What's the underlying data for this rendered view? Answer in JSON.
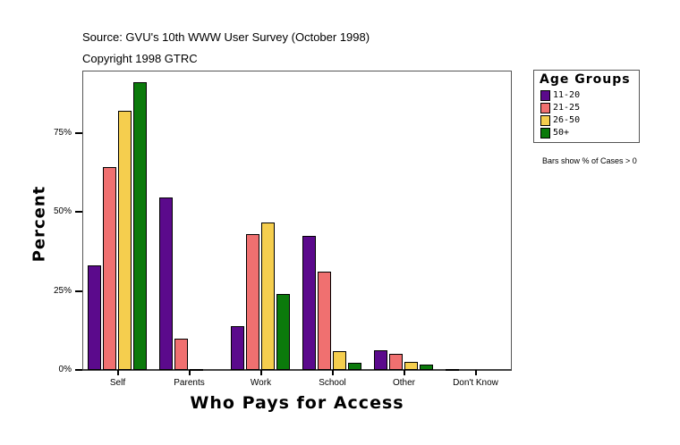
{
  "header": {
    "source": "Source: GVU's 10th WWW User Survey (October 1998)",
    "copyright": "Copyright 1998 GTRC"
  },
  "legend": {
    "title": "Age Groups",
    "items": [
      {
        "label": "11-20",
        "color": "#5B0A8C"
      },
      {
        "label": "21-25",
        "color": "#F07070"
      },
      {
        "label": "26-50",
        "color": "#F5CE4E"
      },
      {
        "label": "50+",
        "color": "#0B7A0B"
      }
    ],
    "note": "Bars show % of Cases > 0"
  },
  "axes": {
    "y_title": "Percent",
    "x_title": "Who Pays for Access",
    "y_ticks": [
      "0%",
      "25%",
      "50%",
      "75%"
    ]
  },
  "chart_data": {
    "type": "bar",
    "title": "Who Pays for Access",
    "subtitle": "Source: GVU's 10th WWW User Survey (October 1998)",
    "xlabel": "Who Pays for Access",
    "ylabel": "Percent",
    "ylim": [
      0,
      95
    ],
    "y_ticks": [
      0,
      25,
      50,
      75
    ],
    "grid": false,
    "legend_position": "right",
    "legend_title": "Age Groups",
    "annotations": [
      "Bars show % of Cases > 0",
      "Copyright 1998 GTRC"
    ],
    "categories": [
      "Self",
      "Parents",
      "Work",
      "School",
      "Other",
      "Don't Know"
    ],
    "series": [
      {
        "name": "11-20",
        "color": "#5B0A8C",
        "values": [
          33.1,
          54.4,
          13.8,
          42.5,
          6.1,
          0.3
        ]
      },
      {
        "name": "21-25",
        "color": "#F07070",
        "values": [
          64.0,
          9.8,
          43.0,
          31.0,
          5.0,
          0.0
        ]
      },
      {
        "name": "26-50",
        "color": "#F5CE4E",
        "values": [
          81.9,
          0.3,
          46.5,
          5.8,
          2.5,
          0.0
        ]
      },
      {
        "name": "50+",
        "color": "#0B7A0B",
        "values": [
          91.0,
          0.0,
          23.9,
          2.2,
          1.6,
          0.0
        ]
      }
    ]
  }
}
